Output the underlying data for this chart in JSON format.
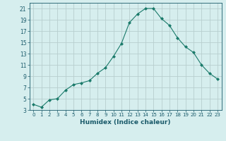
{
  "x": [
    0,
    1,
    2,
    3,
    4,
    5,
    6,
    7,
    8,
    9,
    10,
    11,
    12,
    13,
    14,
    15,
    16,
    17,
    18,
    19,
    20,
    21,
    22,
    23
  ],
  "y": [
    4,
    3.5,
    4.8,
    5.0,
    6.5,
    7.5,
    7.8,
    8.2,
    9.5,
    10.5,
    12.5,
    14.8,
    18.5,
    20.0,
    21.0,
    21.0,
    19.2,
    18.0,
    15.8,
    14.2,
    13.2,
    11.0,
    9.5,
    8.5
  ],
  "line_color": "#1a7a6a",
  "marker": "D",
  "marker_size": 2.0,
  "bg_color": "#d6eeee",
  "grid_color": "#b8cece",
  "xlabel": "Humidex (Indice chaleur)",
  "ylim": [
    3,
    22
  ],
  "xlim": [
    -0.5,
    23.5
  ],
  "yticks": [
    3,
    5,
    7,
    9,
    11,
    13,
    15,
    17,
    19,
    21
  ],
  "xticks": [
    0,
    1,
    2,
    3,
    4,
    5,
    6,
    7,
    8,
    9,
    10,
    11,
    12,
    13,
    14,
    15,
    16,
    17,
    18,
    19,
    20,
    21,
    22,
    23
  ],
  "tick_color": "#1a5a6a",
  "xlabel_fontsize": 6.5,
  "xlabel_color": "#1a5a6a",
  "ytick_fontsize": 5.5,
  "xtick_fontsize": 5.0,
  "linewidth": 0.8
}
